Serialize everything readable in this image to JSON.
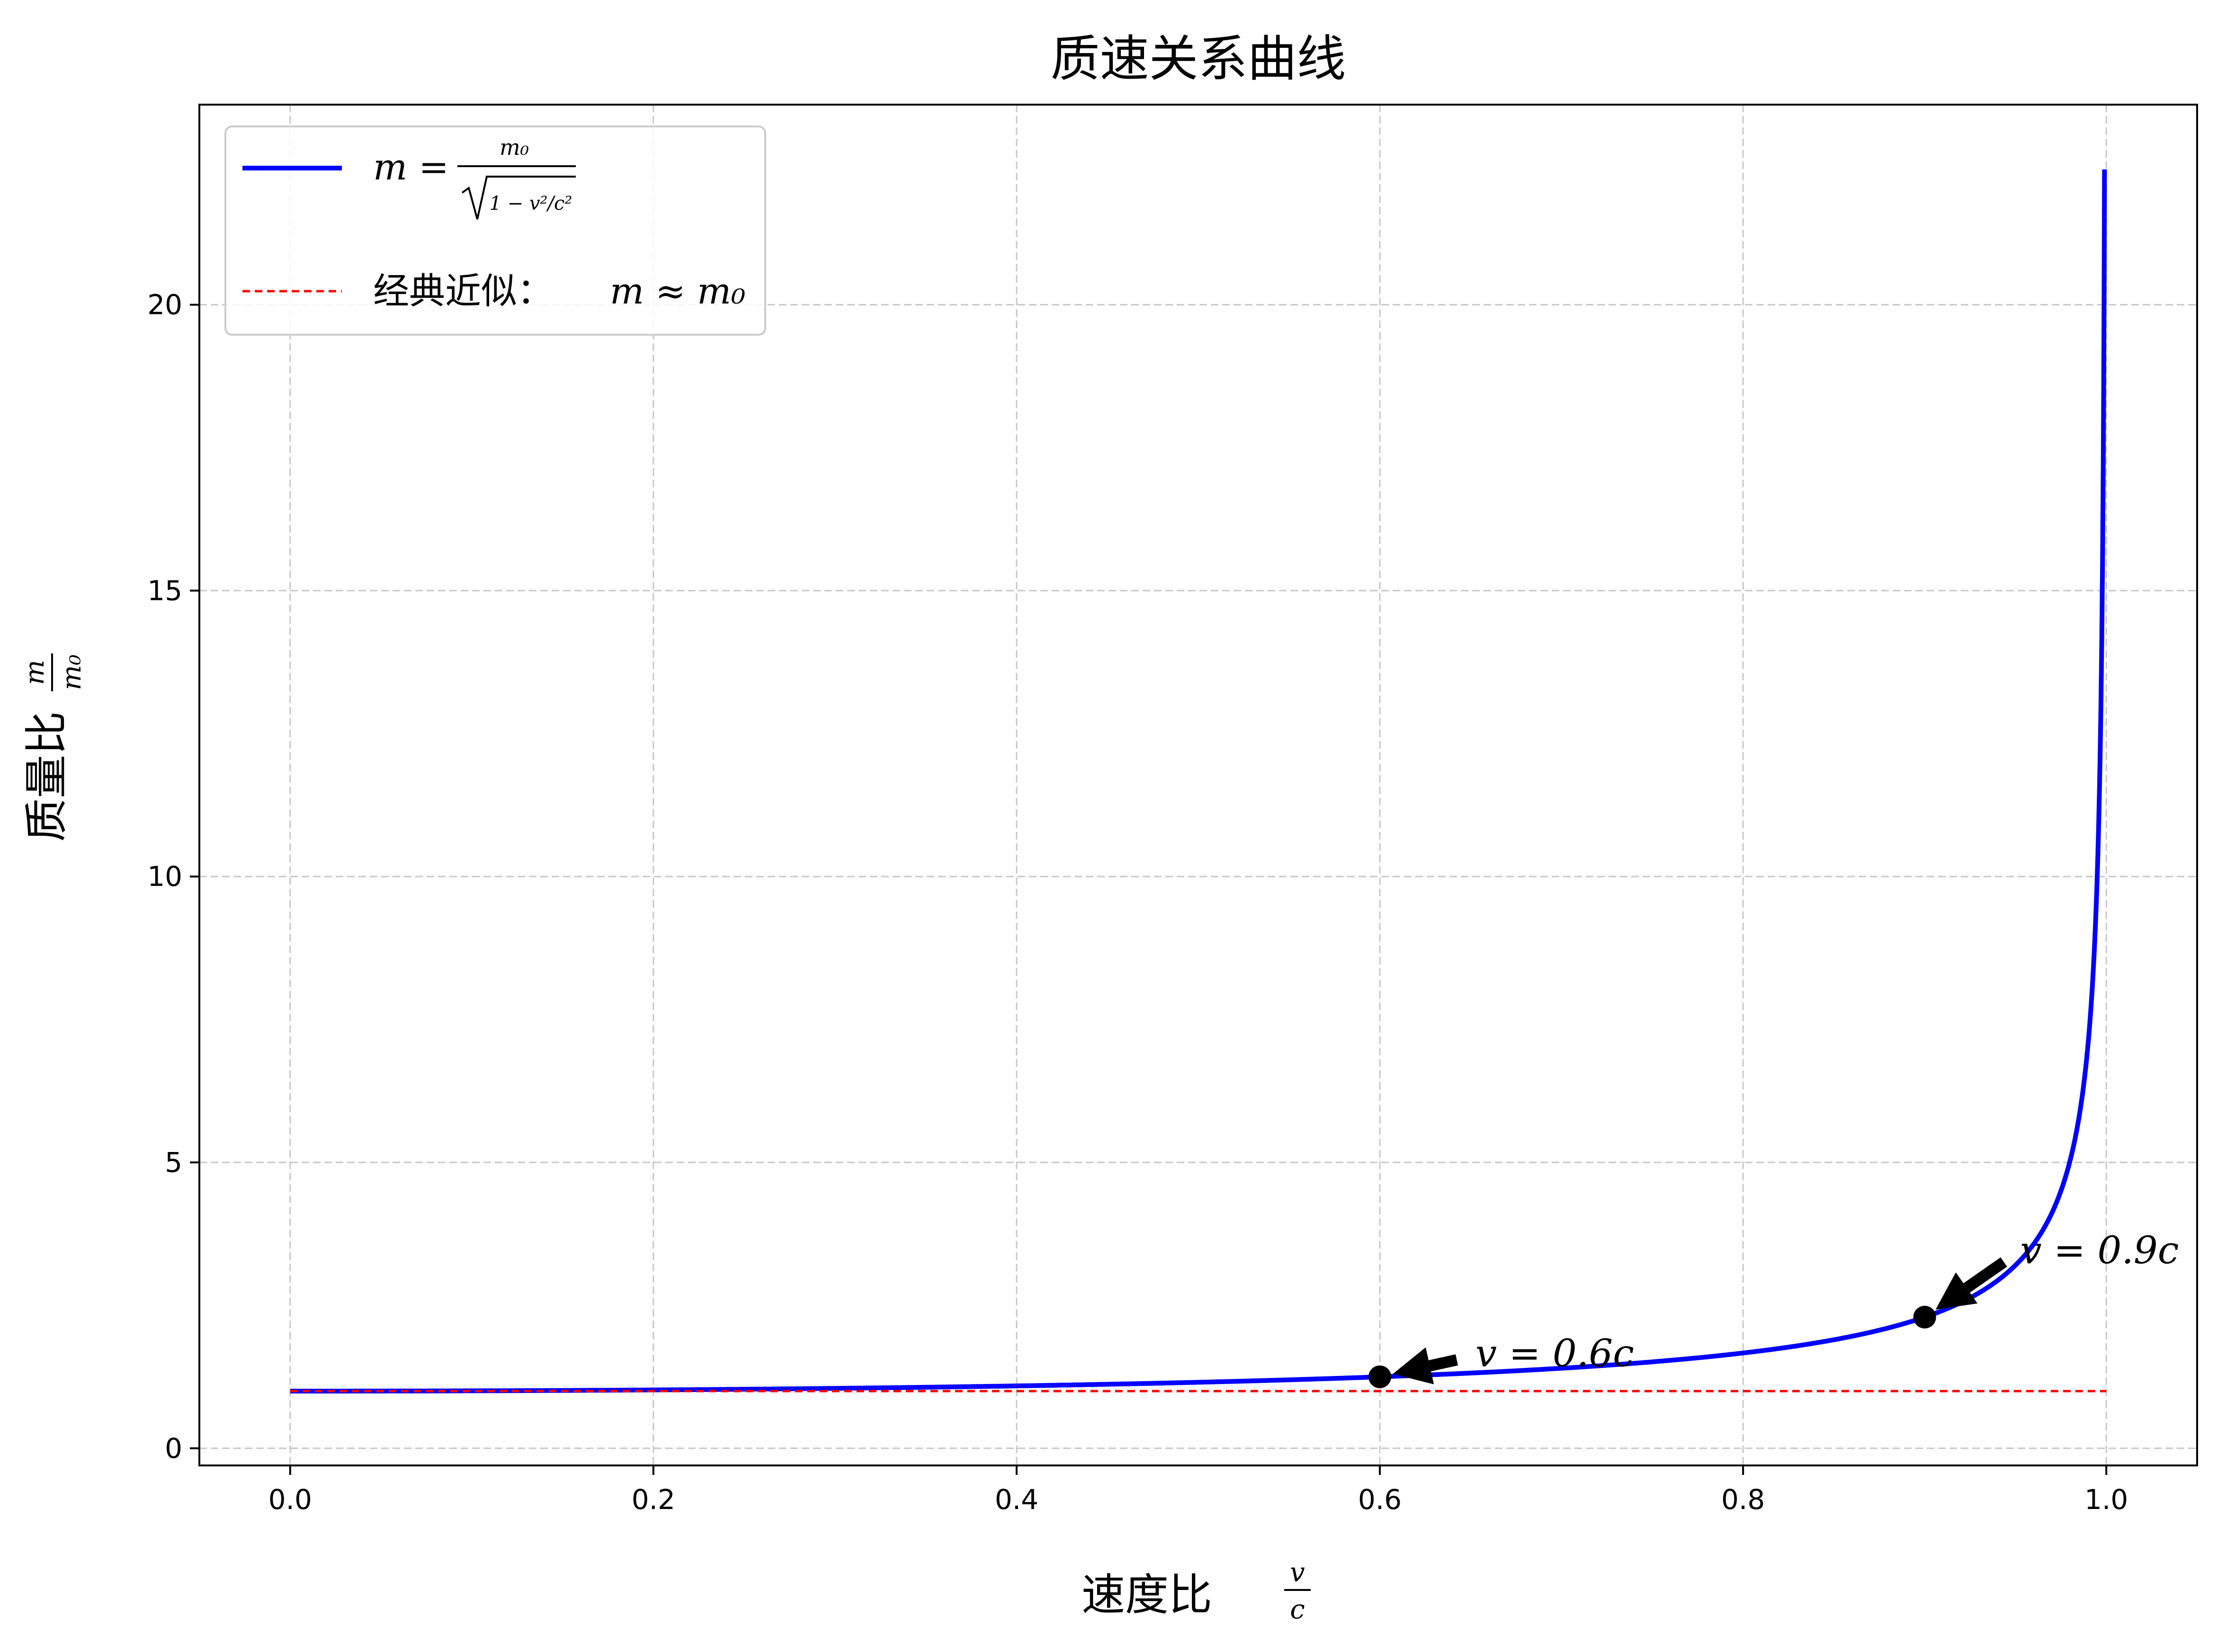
{
  "chart_data": {
    "type": "line",
    "title": "质速关系曲线",
    "xlabel": "速度比",
    "xlabel_math": {
      "num": "v",
      "den": "c"
    },
    "ylabel": "质量比",
    "ylabel_math": {
      "num": "m",
      "den": "m₀"
    },
    "xlim": [
      -0.05,
      1.05
    ],
    "ylim": [
      -0.3,
      23.5
    ],
    "xticks": [
      0.0,
      0.2,
      0.4,
      0.6,
      0.8,
      1.0
    ],
    "xtick_labels": [
      "0.0",
      "0.2",
      "0.4",
      "0.6",
      "0.8",
      "1.0"
    ],
    "yticks": [
      0,
      5,
      10,
      15,
      20
    ],
    "ytick_labels": [
      "0",
      "5",
      "10",
      "15",
      "20"
    ],
    "grid": true,
    "legend_position": "top-left",
    "series": [
      {
        "name": "m = m₀ / √(1 − v²/c²)",
        "legend_lhs": "m =",
        "legend_num": "m₀",
        "legend_den": "1 − v²/c²",
        "color": "#0000ff",
        "style": "solid",
        "formula": "1/sqrt(1-x^2)",
        "x_range": [
          0.0,
          0.999
        ],
        "x": [
          0.0,
          0.1,
          0.2,
          0.3,
          0.4,
          0.5,
          0.6,
          0.7,
          0.8,
          0.85,
          0.9,
          0.93,
          0.95,
          0.97,
          0.98,
          0.99,
          0.995,
          0.997,
          0.999
        ],
        "y": [
          1.0,
          1.005,
          1.021,
          1.048,
          1.091,
          1.155,
          1.25,
          1.4,
          1.667,
          1.898,
          2.294,
          2.72,
          3.203,
          4.113,
          5.025,
          7.089,
          10.013,
          12.92,
          22.37
        ]
      },
      {
        "name": "经典近似：m≈m₀",
        "legend_prefix": "经典近似：",
        "legend_math": "m ≈ m₀",
        "color": "#ff0000",
        "style": "dashed",
        "x": [
          0.0,
          1.0
        ],
        "y": [
          1.0,
          1.0
        ]
      }
    ],
    "points": [
      {
        "x": 0.6,
        "y": 1.25
      },
      {
        "x": 0.9,
        "y": 2.294
      }
    ],
    "annotations": [
      {
        "text": "v = 0.6c",
        "x": 0.6,
        "y": 1.25,
        "text_x": 0.65,
        "text_y": 1.6
      },
      {
        "text": "v = 0.9c",
        "x": 0.9,
        "y": 2.294,
        "text_x": 0.95,
        "text_y": 3.4
      }
    ]
  }
}
